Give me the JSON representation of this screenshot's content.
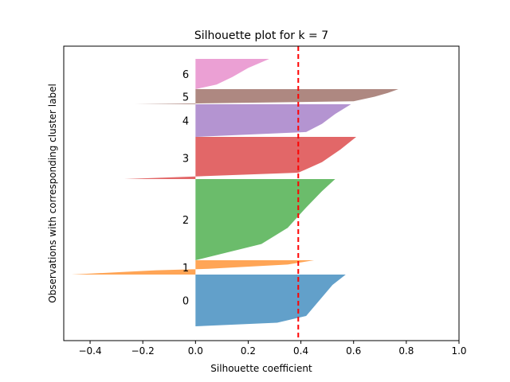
{
  "chart_data": {
    "type": "area",
    "title": "Silhouette plot for k = 7",
    "xlabel": "Silhouette coefficient",
    "ylabel": "Observations with corresponding cluster label",
    "xlim": [
      -0.5,
      1.0
    ],
    "xticks": [
      -0.4,
      -0.2,
      0.0,
      0.2,
      0.4,
      0.6,
      0.8,
      1.0
    ],
    "xtick_labels": [
      "−0.4",
      "−0.2",
      "0.0",
      "0.2",
      "0.4",
      "0.6",
      "0.8",
      "1.0"
    ],
    "average_silhouette": 0.39,
    "grid": false,
    "clusters": [
      {
        "label": "0",
        "color": "#1f77b4",
        "profile": [
          [
            0.0,
            0.57
          ],
          [
            0.2,
            0.52
          ],
          [
            0.5,
            0.47
          ],
          [
            0.8,
            0.42
          ],
          [
            0.93,
            0.31
          ],
          [
            1.0,
            0.0
          ]
        ]
      },
      {
        "label": "1",
        "color": "#ff7f0e",
        "profile": [
          [
            0.0,
            0.45
          ],
          [
            0.3,
            0.35
          ],
          [
            0.6,
            0.05
          ],
          [
            0.7,
            -0.15
          ],
          [
            1.0,
            -0.47
          ]
        ]
      },
      {
        "label": "2",
        "color": "#2ca02c",
        "profile": [
          [
            0.0,
            0.53
          ],
          [
            0.15,
            0.48
          ],
          [
            0.35,
            0.42
          ],
          [
            0.6,
            0.35
          ],
          [
            0.8,
            0.25
          ],
          [
            1.0,
            0.0
          ]
        ]
      },
      {
        "label": "3",
        "color": "#d62728",
        "profile": [
          [
            0.0,
            0.61
          ],
          [
            0.3,
            0.55
          ],
          [
            0.6,
            0.48
          ],
          [
            0.85,
            0.39
          ],
          [
            1.0,
            -0.27
          ]
        ]
      },
      {
        "label": "4",
        "color": "#9467bd",
        "profile": [
          [
            0.0,
            0.59
          ],
          [
            0.3,
            0.53
          ],
          [
            0.6,
            0.48
          ],
          [
            0.85,
            0.42
          ],
          [
            1.0,
            0.0
          ]
        ]
      },
      {
        "label": "5",
        "color": "#8c564b",
        "profile": [
          [
            0.0,
            0.77
          ],
          [
            0.25,
            0.73
          ],
          [
            0.5,
            0.68
          ],
          [
            0.8,
            0.6
          ],
          [
            0.95,
            0.0
          ],
          [
            1.0,
            -0.23
          ]
        ]
      },
      {
        "label": "6",
        "color": "#e377c2",
        "profile": [
          [
            0.0,
            0.28
          ],
          [
            0.3,
            0.2
          ],
          [
            0.6,
            0.14
          ],
          [
            0.85,
            0.08
          ],
          [
            1.0,
            0.0
          ]
        ]
      }
    ]
  }
}
